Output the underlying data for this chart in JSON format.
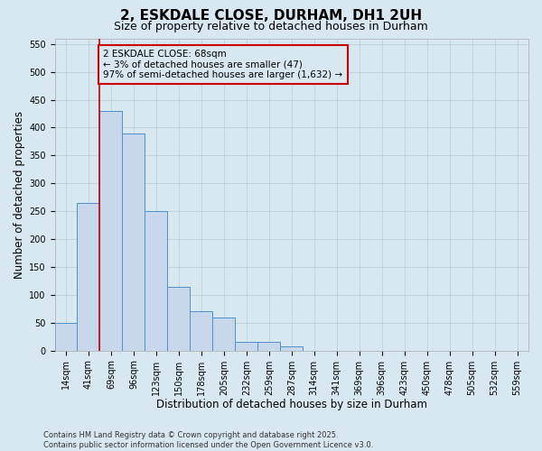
{
  "title1": "2, ESKDALE CLOSE, DURHAM, DH1 2UH",
  "title2": "Size of property relative to detached houses in Durham",
  "xlabel": "Distribution of detached houses by size in Durham",
  "ylabel": "Number of detached properties",
  "categories": [
    "14sqm",
    "41sqm",
    "69sqm",
    "96sqm",
    "123sqm",
    "150sqm",
    "178sqm",
    "205sqm",
    "232sqm",
    "259sqm",
    "287sqm",
    "314sqm",
    "341sqm",
    "369sqm",
    "396sqm",
    "423sqm",
    "450sqm",
    "478sqm",
    "505sqm",
    "532sqm",
    "559sqm"
  ],
  "bar_heights": [
    50,
    265,
    430,
    390,
    250,
    115,
    70,
    60,
    15,
    15,
    8,
    0,
    0,
    0,
    0,
    0,
    0,
    0,
    0,
    0,
    0
  ],
  "bar_color": "#c8d8ec",
  "bar_edge_color": "#5090c8",
  "vline_color": "#cc0000",
  "vline_index": 2,
  "annotation_text": "2 ESKDALE CLOSE: 68sqm\n← 3% of detached houses are smaller (47)\n97% of semi-detached houses are larger (1,632) →",
  "annotation_box_color": "#cc0000",
  "ylim": [
    0,
    560
  ],
  "yticks": [
    0,
    50,
    100,
    150,
    200,
    250,
    300,
    350,
    400,
    450,
    500,
    550
  ],
  "grid_color": "#b8ccd8",
  "background_color": "#d8e8f0",
  "footer_text": "Contains HM Land Registry data © Crown copyright and database right 2025.\nContains public sector information licensed under the Open Government Licence v3.0.",
  "title_fontsize": 11,
  "subtitle_fontsize": 9,
  "axis_label_fontsize": 8.5,
  "tick_fontsize": 7,
  "annotation_fontsize": 7.5,
  "footer_fontsize": 6
}
